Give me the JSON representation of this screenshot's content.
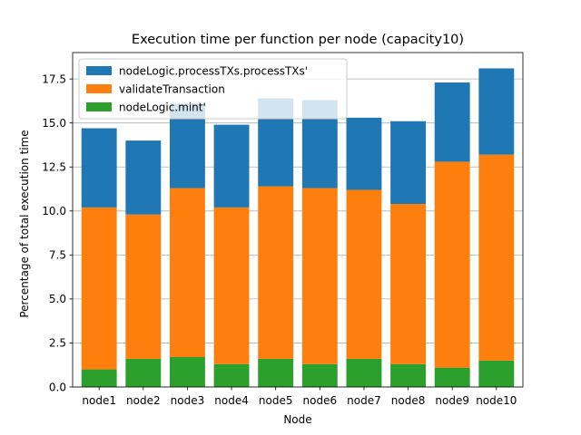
{
  "chart_data": {
    "type": "bar",
    "stacked": true,
    "title": "Execution time per function per node (capacity10)",
    "xlabel": "Node",
    "ylabel": "Percentage of total execution time",
    "categories": [
      "node1",
      "node2",
      "node3",
      "node4",
      "node5",
      "node6",
      "node7",
      "node8",
      "node9",
      "node10"
    ],
    "ylim": [
      0,
      19
    ],
    "yticks": [
      0.0,
      2.5,
      5.0,
      7.5,
      10.0,
      12.5,
      15.0,
      17.5
    ],
    "ytick_labels": [
      "0.0",
      "2.5",
      "5.0",
      "7.5",
      "10.0",
      "12.5",
      "15.0",
      "17.5"
    ],
    "grid": "y",
    "legend_position": "top-left",
    "series": [
      {
        "name": "nodeLogic.mint'",
        "color": "#2ca02c",
        "values": [
          1.0,
          1.6,
          1.7,
          1.3,
          1.6,
          1.3,
          1.6,
          1.3,
          1.1,
          1.5
        ]
      },
      {
        "name": " validateTransaction",
        "color": "#ff7f0e",
        "values": [
          9.2,
          8.2,
          9.6,
          8.9,
          9.8,
          10.0,
          9.6,
          9.1,
          11.7,
          11.7
        ]
      },
      {
        "name": "nodeLogic.processTXs.processTXs'",
        "color": "#1f77b4",
        "values": [
          4.5,
          4.2,
          4.8,
          4.7,
          5.0,
          5.0,
          4.1,
          4.7,
          4.5,
          4.9
        ]
      }
    ],
    "legend_order": [
      2,
      1,
      0
    ]
  }
}
